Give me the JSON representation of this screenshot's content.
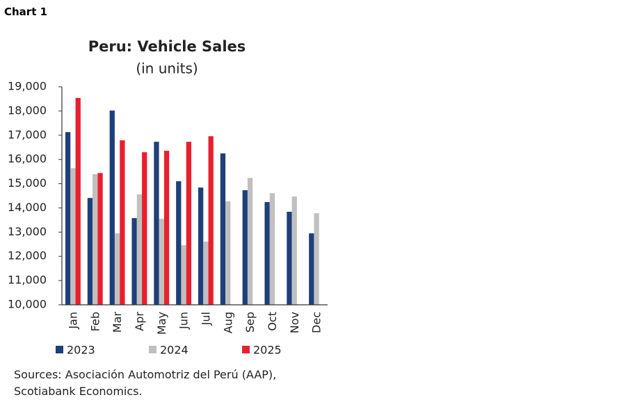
{
  "header": "Chart 1",
  "source": "Sources: Asociación Automotriz del Perú (AAP), Scotiabank Economics.",
  "chart_data": {
    "type": "bar",
    "title": "Peru: Vehicle Sales",
    "subtitle": "(in units)",
    "categories": [
      "Jan",
      "Feb",
      "Mar",
      "Apr",
      "May",
      "Jun",
      "Jul",
      "Aug",
      "Sep",
      "Oct",
      "Nov",
      "Dec"
    ],
    "series": [
      {
        "name": "2023",
        "color": "#1f3f7a",
        "values": [
          17130,
          14410,
          18020,
          13580,
          16730,
          15100,
          14840,
          16250,
          14730,
          14240,
          13840,
          12950
        ]
      },
      {
        "name": "2024",
        "color": "#c0c0c0",
        "values": [
          15640,
          15390,
          12950,
          14560,
          13550,
          12460,
          12610,
          14270,
          15240,
          14610,
          14470,
          13780
        ]
      },
      {
        "name": "2025",
        "color": "#e8202e",
        "values": [
          18540,
          15440,
          16790,
          16300,
          16360,
          16730,
          16960,
          null,
          null,
          null,
          null,
          null
        ]
      }
    ],
    "ylim": [
      10000,
      19000
    ],
    "yticks": [
      {
        "value": 10000,
        "label": "10,000"
      },
      {
        "value": 11000,
        "label": "11,000"
      },
      {
        "value": 12000,
        "label": "12,000"
      },
      {
        "value": 13000,
        "label": "13,000"
      },
      {
        "value": 14000,
        "label": "14,000"
      },
      {
        "value": 15000,
        "label": "15,000"
      },
      {
        "value": 16000,
        "label": "16,000"
      },
      {
        "value": 17000,
        "label": "17,000"
      },
      {
        "value": 18000,
        "label": "18,000"
      },
      {
        "value": 19000,
        "label": "19,000"
      }
    ],
    "grid": false,
    "legend": "bottom"
  }
}
